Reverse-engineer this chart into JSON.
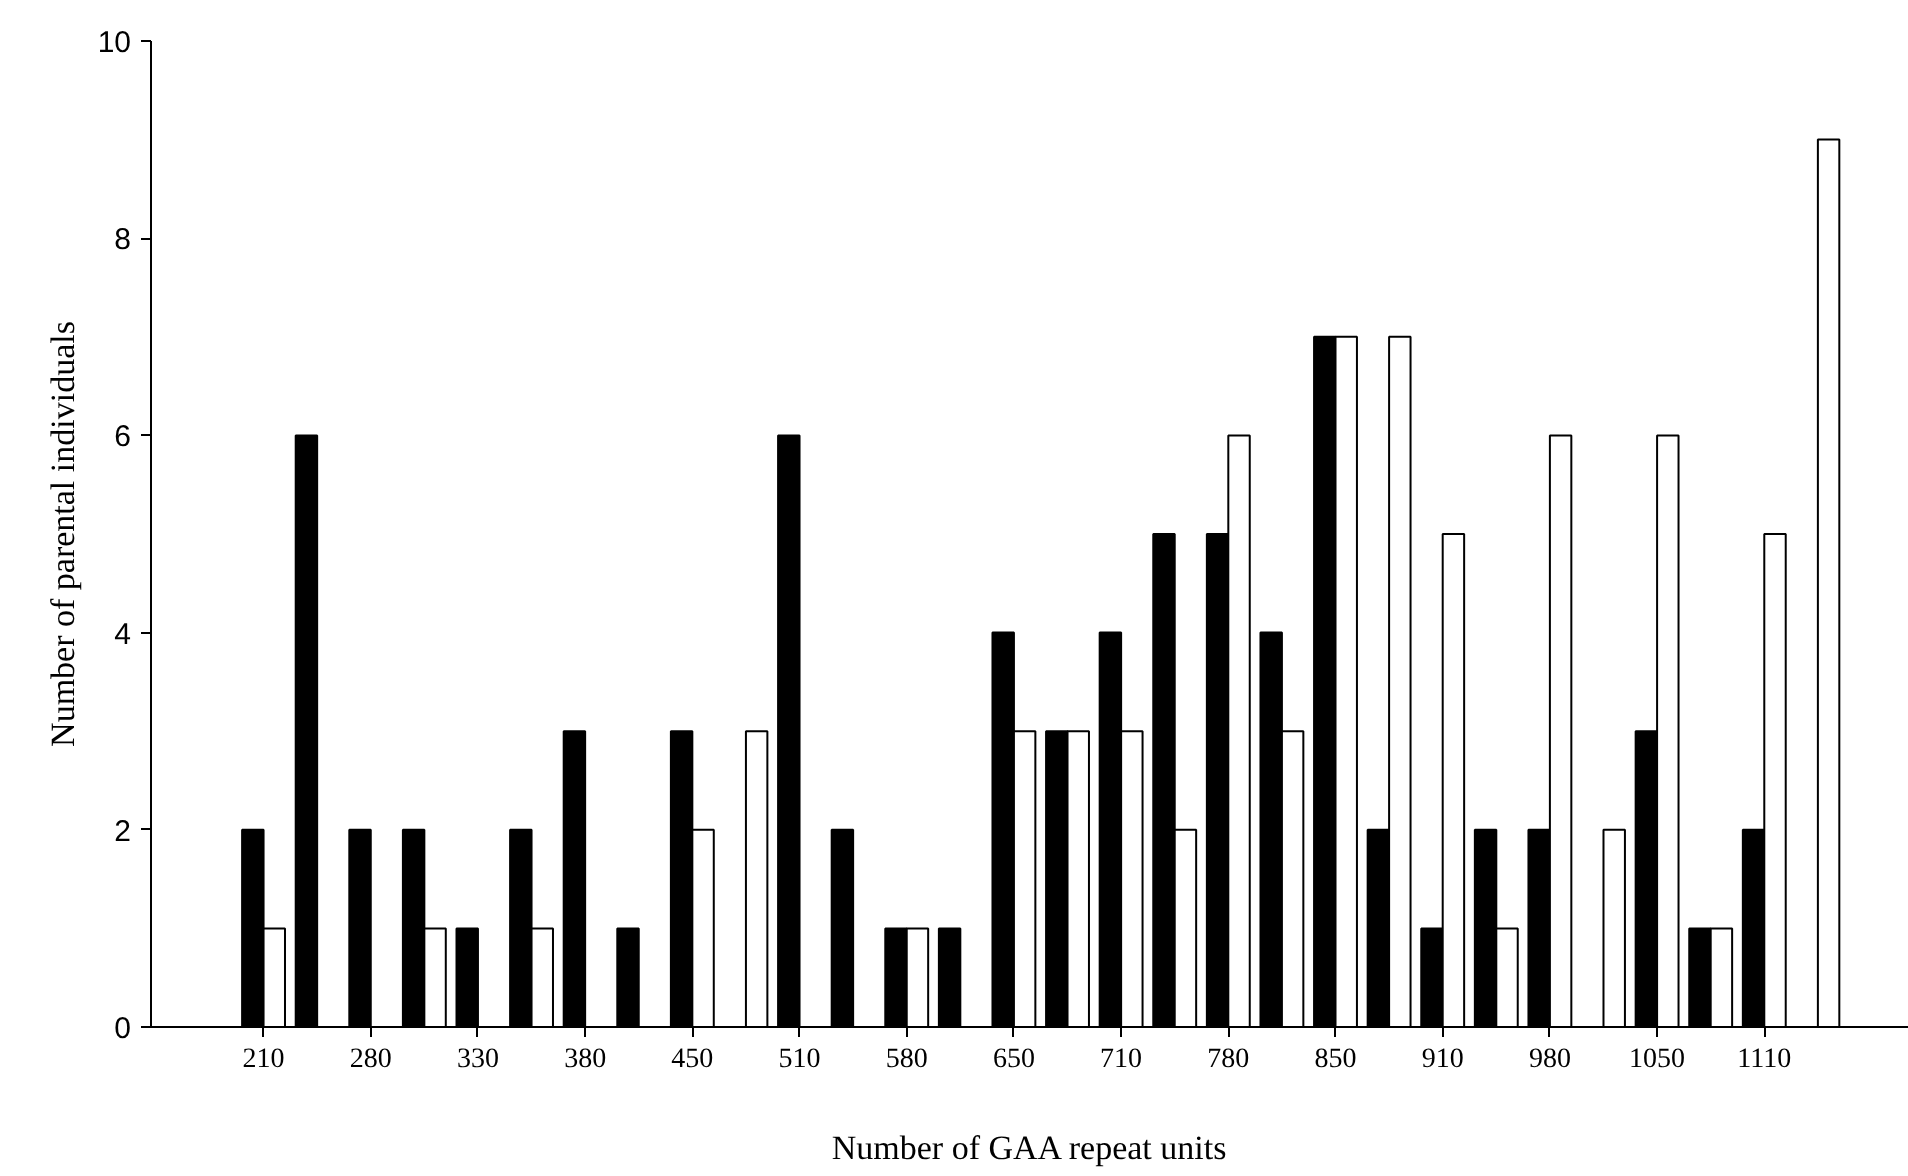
{
  "chart_data": {
    "type": "bar",
    "xlabel": "Number of GAA repeat units",
    "ylabel": "Number of parental individuals",
    "categories": [
      "210",
      null,
      "280",
      null,
      "330",
      null,
      "380",
      null,
      "450",
      null,
      "510",
      null,
      "580",
      null,
      "650",
      null,
      "710",
      null,
      "780",
      null,
      "850",
      null,
      "910",
      null,
      "980",
      null,
      "1050",
      null,
      "1110",
      null
    ],
    "series": [
      {
        "color": "#000000",
        "values": [
          2,
          6,
          2,
          2,
          1,
          2,
          3,
          1,
          3,
          0,
          6,
          2,
          1,
          1,
          4,
          3,
          4,
          5,
          5,
          4,
          7,
          2,
          1,
          2,
          2,
          0,
          3,
          1,
          2,
          0
        ]
      },
      {
        "color": "#ffffff",
        "values": [
          1,
          0,
          0,
          1,
          0,
          1,
          0,
          0,
          2,
          3,
          0,
          0,
          1,
          0,
          3,
          3,
          3,
          2,
          6,
          3,
          7,
          7,
          5,
          1,
          6,
          2,
          6,
          1,
          5,
          9
        ]
      }
    ],
    "ylim": [
      0,
      10
    ],
    "yticks": [
      0,
      2,
      4,
      6,
      8,
      10
    ],
    "grid": false
  }
}
